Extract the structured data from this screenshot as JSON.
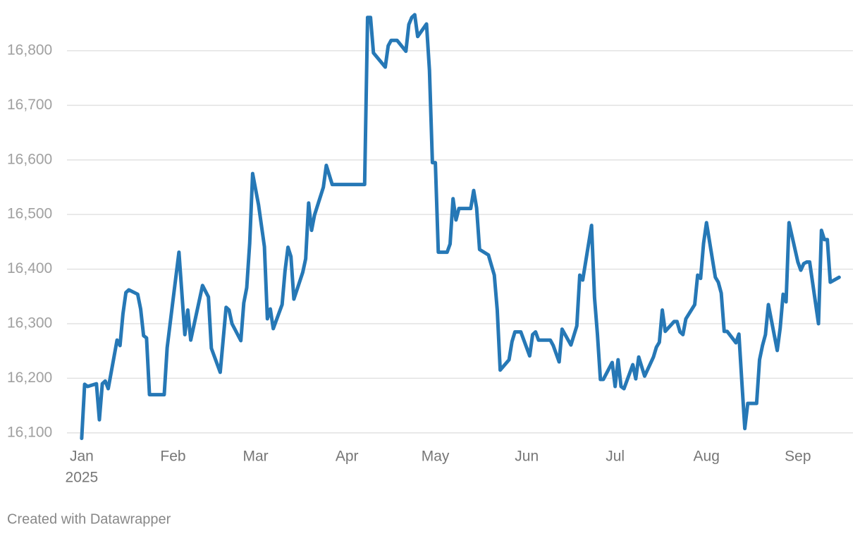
{
  "chart_data": {
    "type": "line",
    "x": [
      0,
      1,
      2,
      5,
      6,
      7,
      8,
      9,
      12,
      13,
      14,
      15,
      16,
      19,
      20,
      21,
      22,
      23,
      28,
      29,
      31,
      33,
      35,
      36,
      37,
      41,
      43,
      44,
      47,
      49,
      50,
      51,
      54,
      55,
      56,
      57,
      58,
      60,
      62,
      63,
      64,
      65,
      68,
      69,
      70,
      71,
      72,
      75,
      76,
      77,
      78,
      79,
      82,
      83,
      85,
      96,
      97,
      98,
      99,
      103,
      104,
      105,
      107,
      110,
      111,
      112,
      113,
      114,
      117,
      118,
      119,
      120,
      121,
      124,
      125,
      126,
      127,
      128,
      132,
      133,
      134,
      135,
      138,
      140,
      141,
      142,
      145,
      146,
      147,
      149,
      152,
      153,
      154,
      155,
      159,
      160,
      162,
      163,
      166,
      168,
      169,
      170,
      173,
      174,
      175,
      176,
      177,
      180,
      181,
      182,
      183,
      184,
      187,
      188,
      189,
      191,
      194,
      195,
      196,
      197,
      198,
      201,
      202,
      203,
      204,
      205,
      208,
      209,
      210,
      211,
      212,
      215,
      216,
      217,
      218,
      219,
      222,
      223,
      224,
      225,
      226,
      229,
      230,
      231,
      232,
      233,
      236,
      237,
      238,
      239,
      240,
      243,
      244,
      245,
      246,
      247,
      250,
      251,
      252,
      253,
      254,
      257
    ],
    "values": [
      16090,
      16189,
      16185,
      16190,
      16124,
      16190,
      16195,
      16181,
      16270,
      16260,
      16318,
      16357,
      16362,
      16354,
      16327,
      16278,
      16274,
      16170,
      16170,
      16256,
      16344,
      16431,
      16280,
      16325,
      16270,
      16370,
      16349,
      16255,
      16211,
      16330,
      16325,
      16300,
      16269,
      16338,
      16366,
      16447,
      16575,
      16518,
      16441,
      16309,
      16327,
      16291,
      16335,
      16397,
      16440,
      16423,
      16345,
      16394,
      16419,
      16521,
      16471,
      16499,
      16550,
      16590,
      16555,
      16555,
      16861,
      16861,
      16796,
      16770,
      16809,
      16819,
      16819,
      16799,
      16848,
      16861,
      16866,
      16826,
      16849,
      16764,
      16595,
      16595,
      16431,
      16431,
      16446,
      16529,
      16490,
      16511,
      16511,
      16544,
      16512,
      16436,
      16426,
      16389,
      16325,
      16215,
      16234,
      16267,
      16285,
      16285,
      16241,
      16280,
      16285,
      16270,
      16270,
      16260,
      16230,
      16290,
      16261,
      16296,
      16389,
      16380,
      16480,
      16348,
      16280,
      16198,
      16198,
      16229,
      16185,
      16234,
      16185,
      16181,
      16225,
      16199,
      16239,
      16204,
      16239,
      16257,
      16266,
      16325,
      16286,
      16304,
      16304,
      16285,
      16280,
      16309,
      16335,
      16389,
      16383,
      16447,
      16485,
      16385,
      16376,
      16356,
      16286,
      16286,
      16265,
      16281,
      16193,
      16108,
      16154,
      16154,
      16234,
      16260,
      16280,
      16335,
      16251,
      16292,
      16354,
      16340,
      16485,
      16413,
      16398,
      16410,
      16413,
      16413,
      16300,
      16471,
      16454,
      16454,
      16376,
      16385
    ],
    "color": "#2678b6",
    "xlim": [
      -3.8,
      259.3
    ],
    "xticks": [
      {
        "value": 0,
        "label": "Jan"
      },
      {
        "value": 31,
        "label": "Feb"
      },
      {
        "value": 59,
        "label": "Mar"
      },
      {
        "value": 90,
        "label": "Apr"
      },
      {
        "value": 120,
        "label": "May"
      },
      {
        "value": 151,
        "label": "Jun"
      },
      {
        "value": 181,
        "label": "Jul"
      },
      {
        "value": 212,
        "label": "Aug"
      },
      {
        "value": 243,
        "label": "Sep"
      }
    ],
    "x_sublabel": "2025",
    "ylim": [
      16092,
      16880
    ],
    "yticks": [
      {
        "value": 16100,
        "label": "16,100"
      },
      {
        "value": 16200,
        "label": "16,200"
      },
      {
        "value": 16300,
        "label": "16,300"
      },
      {
        "value": 16400,
        "label": "16,400"
      },
      {
        "value": 16500,
        "label": "16,500"
      },
      {
        "value": 16600,
        "label": "16,600"
      },
      {
        "value": 16700,
        "label": "16,700"
      },
      {
        "value": 16800,
        "label": "16,800"
      }
    ],
    "grid": true,
    "credit": "Created with Datawrapper"
  }
}
